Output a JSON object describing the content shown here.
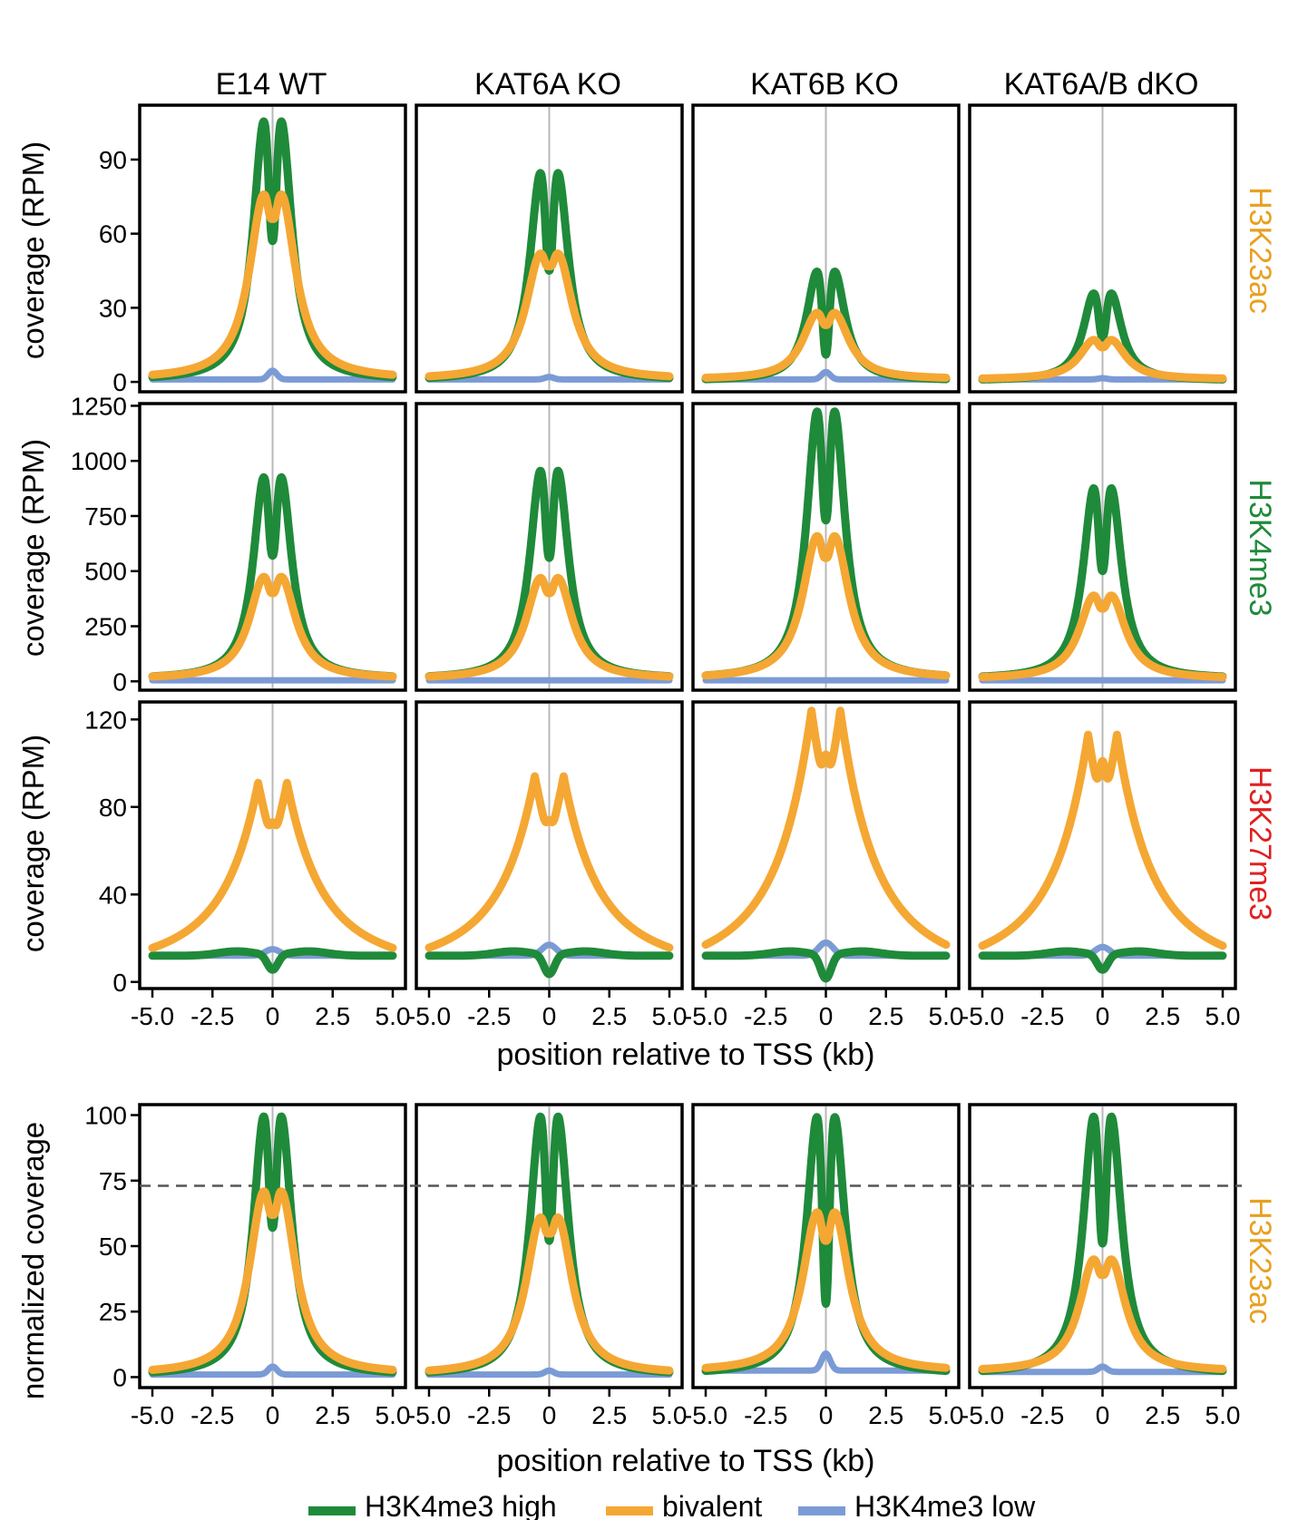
{
  "figure": {
    "columns": [
      "E14 WT",
      "KAT6A KO",
      "KAT6B KO",
      "KAT6A/B dKO"
    ],
    "rows": [
      {
        "mark": "H3K23ac",
        "color": "#e8a020",
        "ylabel": "coverage (RPM)"
      },
      {
        "mark": "H3K4me3",
        "color": "#1f8a3a",
        "ylabel": "coverage (RPM)"
      },
      {
        "mark": "H3K27me3",
        "color": "#e02020",
        "ylabel": "coverage (RPM)"
      },
      {
        "mark": "H3K23ac",
        "color": "#e8a020",
        "ylabel": "normalized coverage"
      }
    ],
    "xlabel_top": "position relative to TSS (kb)",
    "xlabel_bottom": "position relative to TSS (kb)",
    "x_ticks": [
      "-5.0",
      "-2.5",
      "0",
      "2.5",
      "5.0"
    ],
    "legend": [
      {
        "label": "H3K4me3 high",
        "color": "#1f8a3a"
      },
      {
        "label": "bivalent",
        "color": "#f5a733"
      },
      {
        "label": "H3K4me3 low",
        "color": "#7b9bd6"
      }
    ]
  },
  "chart_data": [
    {
      "type": "line",
      "row": "H3K23ac",
      "ylabel": "coverage (RPM)",
      "xlim": [
        -5.0,
        5.0
      ],
      "ylim": [
        -4,
        112
      ],
      "yticks": [
        0,
        30,
        60,
        90
      ],
      "series_names": [
        "H3K4me3 high",
        "bivalent",
        "H3K4me3 low"
      ],
      "panels": [
        {
          "column": "E14 WT",
          "high": {
            "peak": 106,
            "dip": 57,
            "base": 0.5
          },
          "bivalent": {
            "peak": 76,
            "dip": 66,
            "base": 1
          },
          "low": {
            "peak": 4.5,
            "base": 1
          }
        },
        {
          "column": "KAT6A KO",
          "high": {
            "peak": 85,
            "dip": 45,
            "base": 0.5
          },
          "bivalent": {
            "peak": 52,
            "dip": 47,
            "base": 1
          },
          "low": {
            "peak": 2,
            "base": 1
          }
        },
        {
          "column": "KAT6B KO",
          "high": {
            "peak": 45,
            "dip": 11,
            "base": 0.5
          },
          "bivalent": {
            "peak": 28,
            "dip": 23,
            "base": 1
          },
          "low": {
            "peak": 4,
            "base": 1
          }
        },
        {
          "column": "KAT6A/B dKO",
          "high": {
            "peak": 36,
            "dip": 18,
            "base": 0.5
          },
          "bivalent": {
            "peak": 17,
            "dip": 14,
            "base": 1
          },
          "low": {
            "peak": 1.5,
            "base": 1
          }
        }
      ]
    },
    {
      "type": "line",
      "row": "H3K4me3",
      "ylabel": "coverage (RPM)",
      "xlim": [
        -5.0,
        5.0
      ],
      "ylim": [
        -40,
        1260
      ],
      "yticks": [
        0,
        250,
        500,
        750,
        1000,
        1250
      ],
      "series_names": [
        "H3K4me3 high",
        "bivalent",
        "H3K4me3 low"
      ],
      "panels": [
        {
          "column": "E14 WT",
          "high": {
            "peak": 930,
            "dip": 570,
            "base": 10
          },
          "bivalent": {
            "peak": 475,
            "dip": 400,
            "base": 10
          },
          "low": {
            "peak": 5,
            "base": 5
          }
        },
        {
          "column": "KAT6A KO",
          "high": {
            "peak": 960,
            "dip": 560,
            "base": 10
          },
          "bivalent": {
            "peak": 470,
            "dip": 400,
            "base": 10
          },
          "low": {
            "peak": 5,
            "base": 5
          }
        },
        {
          "column": "KAT6B KO",
          "high": {
            "peak": 1230,
            "dip": 730,
            "base": 10
          },
          "bivalent": {
            "peak": 660,
            "dip": 560,
            "base": 10
          },
          "low": {
            "peak": 5,
            "base": 5
          }
        },
        {
          "column": "KAT6A/B dKO",
          "high": {
            "peak": 880,
            "dip": 500,
            "base": 10
          },
          "bivalent": {
            "peak": 390,
            "dip": 330,
            "base": 10
          },
          "low": {
            "peak": 5,
            "base": 5
          }
        }
      ]
    },
    {
      "type": "line",
      "row": "H3K27me3",
      "ylabel": "coverage (RPM)",
      "xlim": [
        -5.0,
        5.0
      ],
      "ylim": [
        -3,
        128
      ],
      "yticks": [
        0,
        40,
        80,
        120
      ],
      "series_names": [
        "H3K4me3 high",
        "bivalent",
        "H3K4me3 low"
      ],
      "panels": [
        {
          "column": "E14 WT",
          "high": {
            "peak": 14,
            "dip": 5,
            "base": 12
          },
          "bivalent": {
            "peak": 91,
            "dip": 73,
            "base": 12
          },
          "low": {
            "peak": 15,
            "base": 12
          }
        },
        {
          "column": "KAT6A KO",
          "high": {
            "peak": 14,
            "dip": 3,
            "base": 12
          },
          "bivalent": {
            "peak": 94,
            "dip": 74,
            "base": 12
          },
          "low": {
            "peak": 17,
            "base": 12
          }
        },
        {
          "column": "KAT6B KO",
          "high": {
            "peak": 14,
            "dip": 1,
            "base": 12
          },
          "bivalent": {
            "peak": 124,
            "dip": 104,
            "base": 12
          },
          "low": {
            "peak": 18,
            "base": 12
          }
        },
        {
          "column": "KAT6A/B dKO",
          "high": {
            "peak": 15,
            "dip": 5,
            "base": 12
          },
          "bivalent": {
            "peak": 113,
            "dip": 101,
            "base": 12
          },
          "low": {
            "peak": 16,
            "base": 12
          }
        }
      ]
    },
    {
      "type": "line",
      "row": "H3K23ac (normalized)",
      "ylabel": "normalized coverage",
      "xlim": [
        -5.0,
        5.0
      ],
      "ylim": [
        -4,
        104
      ],
      "yticks": [
        0,
        25,
        50,
        75,
        100
      ],
      "reference_line_y": 73,
      "series_names": [
        "H3K4me3 high",
        "bivalent",
        "H3K4me3 low"
      ],
      "panels": [
        {
          "column": "E14 WT",
          "high": {
            "peak": 100,
            "dip": 57,
            "base": 0.5
          },
          "bivalent": {
            "peak": 71,
            "dip": 62,
            "base": 1
          },
          "low": {
            "peak": 4,
            "base": 1
          }
        },
        {
          "column": "KAT6A KO",
          "high": {
            "peak": 100,
            "dip": 52,
            "base": 0.5
          },
          "bivalent": {
            "peak": 61,
            "dip": 55,
            "base": 1
          },
          "low": {
            "peak": 2.5,
            "base": 1
          }
        },
        {
          "column": "KAT6B KO",
          "high": {
            "peak": 100,
            "dip": 28,
            "base": 1
          },
          "bivalent": {
            "peak": 63,
            "dip": 52,
            "base": 2
          },
          "low": {
            "peak": 9,
            "base": 2.5
          }
        },
        {
          "column": "KAT6A/B dKO",
          "high": {
            "peak": 100,
            "dip": 51,
            "base": 1
          },
          "bivalent": {
            "peak": 45,
            "dip": 39,
            "base": 2
          },
          "low": {
            "peak": 4,
            "base": 2
          }
        }
      ]
    }
  ]
}
